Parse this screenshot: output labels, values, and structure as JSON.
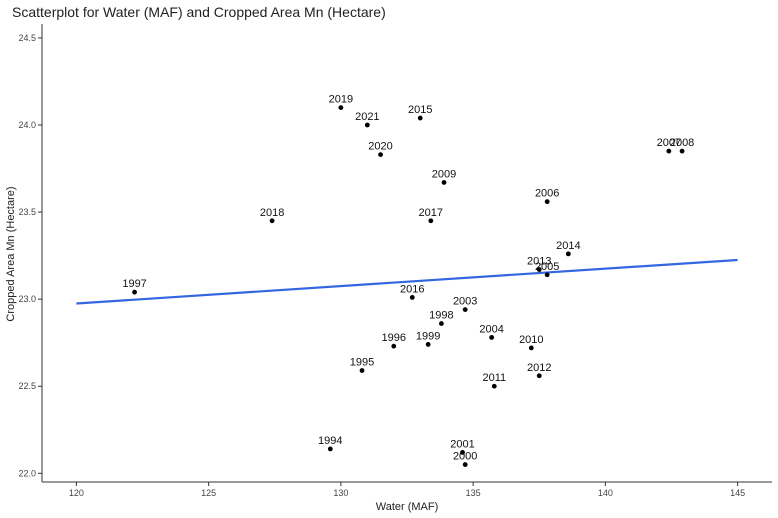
{
  "chart_data": {
    "type": "scatter",
    "title": "Scatterplot for Water (MAF) and Cropped Area Mn (Hectare)",
    "xlabel": "Water (MAF)",
    "ylabel": "Cropped Area Mn (Hectare)",
    "xlim": [
      118.7,
      146.3
    ],
    "ylim": [
      21.95,
      24.58
    ],
    "x_ticks": [
      120,
      125,
      130,
      135,
      140,
      145
    ],
    "x_tick_labels": [
      "120",
      "125",
      "130",
      "135",
      "140",
      "145"
    ],
    "y_ticks": [
      22.0,
      22.5,
      23.0,
      23.5,
      24.0,
      24.5
    ],
    "y_tick_labels": [
      "22.0",
      "22.5",
      "23.0",
      "23.5",
      "24.0",
      "24.5"
    ],
    "grid": false,
    "points": [
      {
        "label": "1994",
        "x": 129.6,
        "y": 22.14
      },
      {
        "label": "1995",
        "x": 130.8,
        "y": 22.59
      },
      {
        "label": "1996",
        "x": 132.0,
        "y": 22.73
      },
      {
        "label": "1997",
        "x": 122.2,
        "y": 23.04
      },
      {
        "label": "1998",
        "x": 133.8,
        "y": 22.86
      },
      {
        "label": "1999",
        "x": 133.3,
        "y": 22.74
      },
      {
        "label": "2000",
        "x": 134.7,
        "y": 22.05
      },
      {
        "label": "2001",
        "x": 134.6,
        "y": 22.12
      },
      {
        "label": "2003",
        "x": 134.7,
        "y": 22.94
      },
      {
        "label": "2004",
        "x": 135.7,
        "y": 22.78
      },
      {
        "label": "2005",
        "x": 137.8,
        "y": 23.14
      },
      {
        "label": "2006",
        "x": 137.8,
        "y": 23.56
      },
      {
        "label": "2007",
        "x": 142.4,
        "y": 23.85
      },
      {
        "label": "2008",
        "x": 142.9,
        "y": 23.85
      },
      {
        "label": "2009",
        "x": 133.9,
        "y": 23.67
      },
      {
        "label": "2010",
        "x": 137.2,
        "y": 22.72
      },
      {
        "label": "2011",
        "x": 135.8,
        "y": 22.5
      },
      {
        "label": "2012",
        "x": 137.5,
        "y": 22.56
      },
      {
        "label": "2013",
        "x": 137.5,
        "y": 23.17
      },
      {
        "label": "2014",
        "x": 138.6,
        "y": 23.26
      },
      {
        "label": "2015",
        "x": 133.0,
        "y": 24.04
      },
      {
        "label": "2016",
        "x": 132.7,
        "y": 23.01
      },
      {
        "label": "2017",
        "x": 133.4,
        "y": 23.45
      },
      {
        "label": "2018",
        "x": 127.4,
        "y": 23.45
      },
      {
        "label": "2019",
        "x": 130.0,
        "y": 24.1
      },
      {
        "label": "2020",
        "x": 131.5,
        "y": 23.83
      },
      {
        "label": "2021",
        "x": 131.0,
        "y": 24.0
      }
    ],
    "trend_line": {
      "x": [
        120,
        145
      ],
      "y": [
        22.975,
        23.225
      ],
      "color": "#3366e0"
    },
    "point_color": "#000000"
  }
}
